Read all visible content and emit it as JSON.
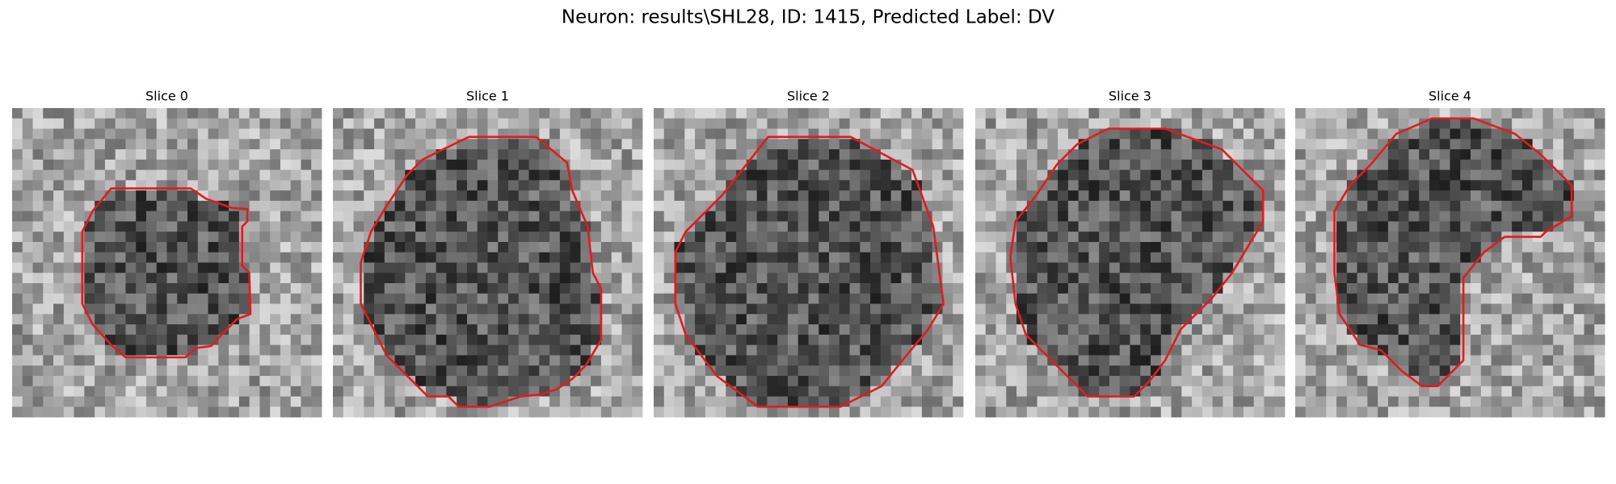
{
  "title": "Neuron: results\\SHL28, ID: 1415, Predicted Label: DV",
  "panels": [
    {
      "title": "Slice 0"
    },
    {
      "title": "Slice 1"
    },
    {
      "title": "Slice 2"
    },
    {
      "title": "Slice 3"
    },
    {
      "title": "Slice 4"
    }
  ]
}
